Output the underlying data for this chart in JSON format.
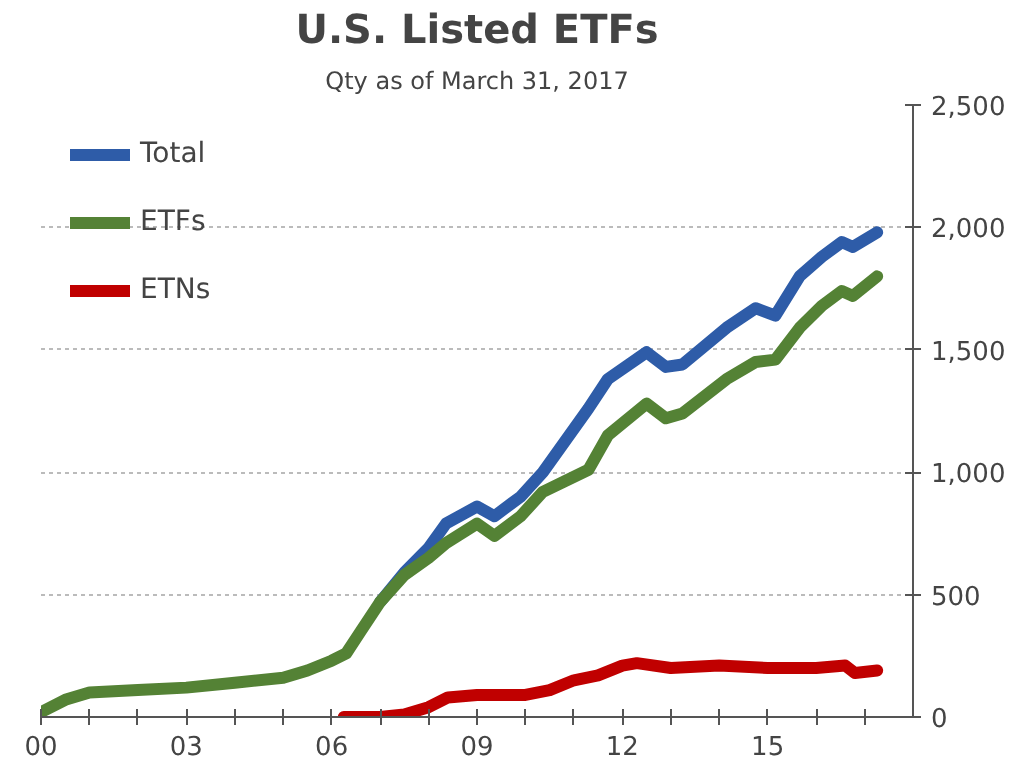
{
  "chart_data": {
    "type": "line",
    "title": "U.S. Listed ETFs",
    "subtitle": "Qty as of March 31, 2017",
    "series": [
      {
        "name": "Total",
        "color": "#2e5ca8",
        "x": [
          2007,
          2007.5,
          2008,
          2008.36,
          2009.0,
          2009.36,
          2009.9,
          2010.36,
          2011.3,
          2011.7,
          2012.5,
          2012.9,
          2013.24,
          2014.15,
          2014.75,
          2015.16,
          2015.66,
          2016.12,
          2016.53,
          2016.76,
          2017.26
        ],
        "values": [
          470,
          590,
          690,
          790,
          860,
          820,
          900,
          1000,
          1260,
          1380,
          1490,
          1430,
          1440,
          1590,
          1670,
          1640,
          1800,
          1880,
          1940,
          1920,
          1980
        ]
      },
      {
        "name": "ETFs",
        "color": "#548235",
        "x": [
          2000,
          2000.5,
          2001,
          2002,
          2003,
          2004,
          2005,
          2005.5,
          2006,
          2006.3,
          2006.6,
          2007,
          2007.5,
          2008,
          2008.36,
          2009.0,
          2009.36,
          2009.9,
          2010.36,
          2011.3,
          2011.7,
          2012.5,
          2012.9,
          2013.24,
          2014.15,
          2014.75,
          2015.16,
          2015.66,
          2016.12,
          2016.53,
          2016.76,
          2017.26
        ],
        "values": [
          20,
          70,
          100,
          110,
          120,
          140,
          160,
          190,
          230,
          260,
          350,
          470,
          580,
          650,
          710,
          790,
          740,
          820,
          920,
          1010,
          1150,
          1280,
          1220,
          1240,
          1380,
          1450,
          1460,
          1590,
          1680,
          1740,
          1720,
          1800
        ]
      },
      {
        "name": "ETNs",
        "color": "#c00000",
        "x": [
          2006.25,
          2007,
          2007.5,
          2008,
          2008.4,
          2009,
          2010,
          2010.5,
          2011,
          2011.5,
          2012,
          2012.3,
          2013,
          2014,
          2015,
          2016,
          2016.6,
          2016.8,
          2017.26
        ],
        "values": [
          0,
          0,
          10,
          40,
          80,
          90,
          90,
          110,
          150,
          170,
          210,
          220,
          200,
          210,
          200,
          200,
          210,
          180,
          190
        ]
      }
    ],
    "xlim": [
      2000,
      2018
    ],
    "xticks": [
      {
        "value": 2000,
        "label": "00"
      },
      {
        "value": 2001,
        "label": null
      },
      {
        "value": 2002,
        "label": null
      },
      {
        "value": 2003,
        "label": "03"
      },
      {
        "value": 2004,
        "label": null
      },
      {
        "value": 2005,
        "label": null
      },
      {
        "value": 2006,
        "label": "06"
      },
      {
        "value": 2007,
        "label": null
      },
      {
        "value": 2008,
        "label": null
      },
      {
        "value": 2009,
        "label": "09"
      },
      {
        "value": 2010,
        "label": null
      },
      {
        "value": 2011,
        "label": null
      },
      {
        "value": 2012,
        "label": "12"
      },
      {
        "value": 2013,
        "label": null
      },
      {
        "value": 2014,
        "label": null
      },
      {
        "value": 2015,
        "label": "15"
      },
      {
        "value": 2016,
        "label": null
      },
      {
        "value": 2017,
        "label": null
      }
    ],
    "ylim": [
      0,
      2500
    ],
    "yticks": [
      0,
      500,
      {
        "value": 1000,
        "label": "1,000"
      },
      {
        "value": 1500,
        "label": "1,500"
      },
      {
        "value": 2000,
        "label": "2,000"
      },
      {
        "value": 2500,
        "label": "2,500"
      }
    ],
    "grid": "y",
    "legend": "top left",
    "line_style": "solid",
    "marker": "none"
  }
}
